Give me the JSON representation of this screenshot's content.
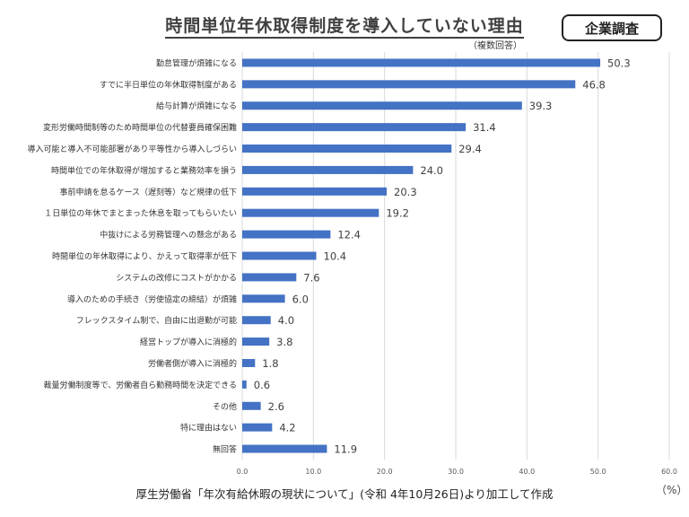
{
  "badge": "企業調査",
  "source": "厚生労働省「年次有給休暇の現状について」(令和 4年10月26日)より加工して作成",
  "chart_data": {
    "type": "bar",
    "orientation": "horizontal",
    "title": "時間単位年休取得制度を導入していない理由",
    "subtitle": "（複数回答）",
    "unit": "（%）",
    "categories": [
      "勤怠管理が煩雑になる",
      "すでに半日単位の年休取得制度がある",
      "給与計算が煩雑になる",
      "変形労働時間制等のため時間単位の代替要員確保困難",
      "導入可能と導入不可能部署があり平等性から導入しづらい",
      "時間単位での年休取得が増加すると業務効率を損う",
      "事前申請を怠るケース（遅刻等）など規律の低下",
      "１日単位の年休でまとまった休息を取ってもらいたい",
      "中抜けによる労務管理への懸念がある",
      "時間単位の年休取得により、かえって取得率が低下",
      "システムの改修にコストがかかる",
      "導入のための手続き（労使協定の締結）が煩雑",
      "フレックスタイム制で、自由に出退勤が可能",
      "経営トップが導入に消極的",
      "労働者側が導入に消極的",
      "裁量労働制度等で、労働者自ら勤務時間を決定できる",
      "その他",
      "特に理由はない",
      "無回答"
    ],
    "values": [
      50.3,
      46.8,
      39.3,
      31.4,
      29.4,
      24.0,
      20.3,
      19.2,
      12.4,
      10.4,
      7.6,
      6.0,
      4.0,
      3.8,
      1.8,
      0.6,
      2.6,
      4.2,
      11.9
    ],
    "value_labels": [
      "50.3",
      "46.8",
      "39.3",
      "31.4",
      "29.4",
      "24.0",
      "20.3",
      "19.2",
      "12.4",
      "10.4",
      "7.6",
      "6.0",
      "4.0",
      "3.8",
      "1.8",
      "0.6",
      "2.6",
      "4.2",
      "11.9"
    ],
    "xlim": [
      0,
      60
    ],
    "xticks": [
      0,
      10,
      20,
      30,
      40,
      50,
      60
    ],
    "xtick_labels": [
      "0.0",
      "10.0",
      "20.0",
      "30.0",
      "40.0",
      "50.0",
      "60.0"
    ],
    "grid": "vertical",
    "legend": "none",
    "bar_color": "#4472C4",
    "grid_color": "#d9d9d9"
  }
}
